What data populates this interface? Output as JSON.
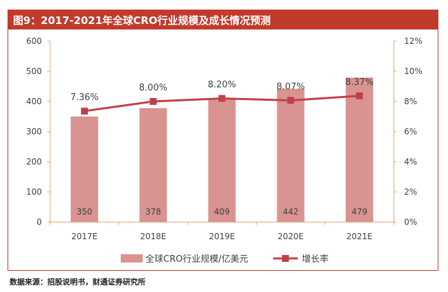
{
  "header": {
    "title": "图9：2017-2021年全球CRO行业规模及成长情况预测"
  },
  "source": "数据来源：招股说明书，财通证券研究所",
  "colors": {
    "header": "#c23a2b",
    "bar": "#d99391",
    "line": "#c0404a",
    "axis": "#e8a06a",
    "text": "#404040"
  },
  "chart_data": {
    "type": "bar+line",
    "categories": [
      "2017E",
      "2018E",
      "2019E",
      "2020E",
      "2021E"
    ],
    "series": [
      {
        "name": "全球CRO行业规模/亿美元",
        "type": "bar",
        "axis": "left",
        "values": [
          350,
          378,
          409,
          442,
          479
        ]
      },
      {
        "name": "增长率",
        "type": "line",
        "axis": "right",
        "values": [
          7.36,
          8.0,
          8.2,
          8.07,
          8.37
        ]
      }
    ],
    "bar_labels": [
      "350",
      "378",
      "409",
      "442",
      "479"
    ],
    "line_labels": [
      "7.36%",
      "8.00%",
      "8.20%",
      "8.07%",
      "8.37%"
    ],
    "ylim_left": [
      0,
      600
    ],
    "yticks_left": [
      "0",
      "100",
      "200",
      "300",
      "400",
      "500",
      "600"
    ],
    "ylim_right": [
      0,
      12
    ],
    "yticks_right": [
      "0%",
      "2%",
      "4%",
      "6%",
      "8%",
      "10%",
      "12%"
    ],
    "legend_position": "bottom",
    "grid": false
  }
}
